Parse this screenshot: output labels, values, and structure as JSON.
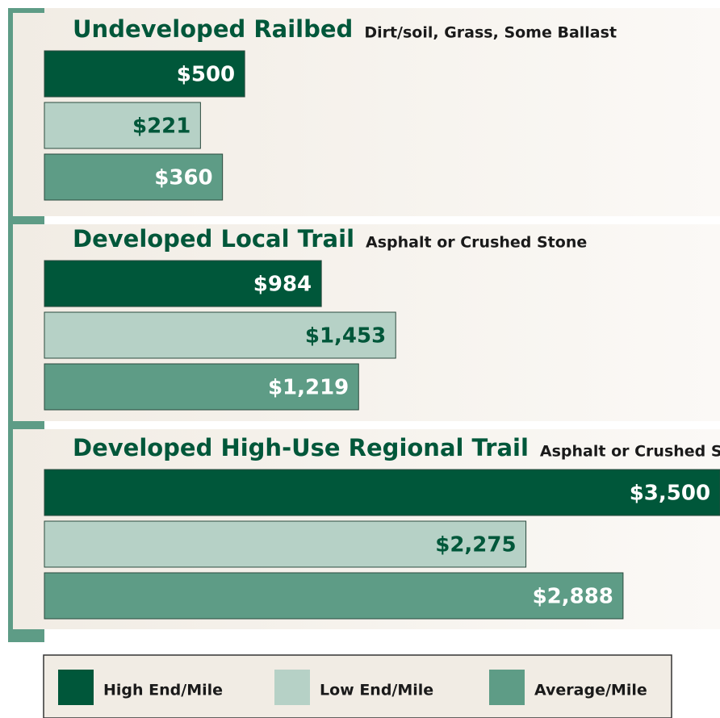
{
  "chart_data": {
    "type": "bar",
    "categories": [
      "Undeveloped Railbed",
      "Developed Local Trail",
      "Developed High-Use Regional Trail"
    ],
    "subtitles": [
      "Dirt/soil, Grass, Some Ballast",
      "Asphalt or Crushed Stone",
      "Asphalt or Crushed Stone"
    ],
    "series": [
      {
        "name": "High End/Mile",
        "color": "#00573a",
        "label_color": "#ffffff",
        "values": [
          500,
          984,
          3500
        ],
        "value_labels": [
          "$500",
          "$984",
          "$3,500"
        ]
      },
      {
        "name": "Low End/Mile",
        "color": "#b6d1c6",
        "label_color": "#00573a",
        "values": [
          221,
          1453,
          2275
        ],
        "value_labels": [
          "$221",
          "$1,453",
          "$2,275"
        ]
      },
      {
        "name": "Average/Mile",
        "color": "#5e9c86",
        "label_color": "#ffffff",
        "values": [
          360,
          1219,
          2888
        ],
        "value_labels": [
          "$360",
          "$1,219",
          "$2,888"
        ]
      }
    ]
  }
}
